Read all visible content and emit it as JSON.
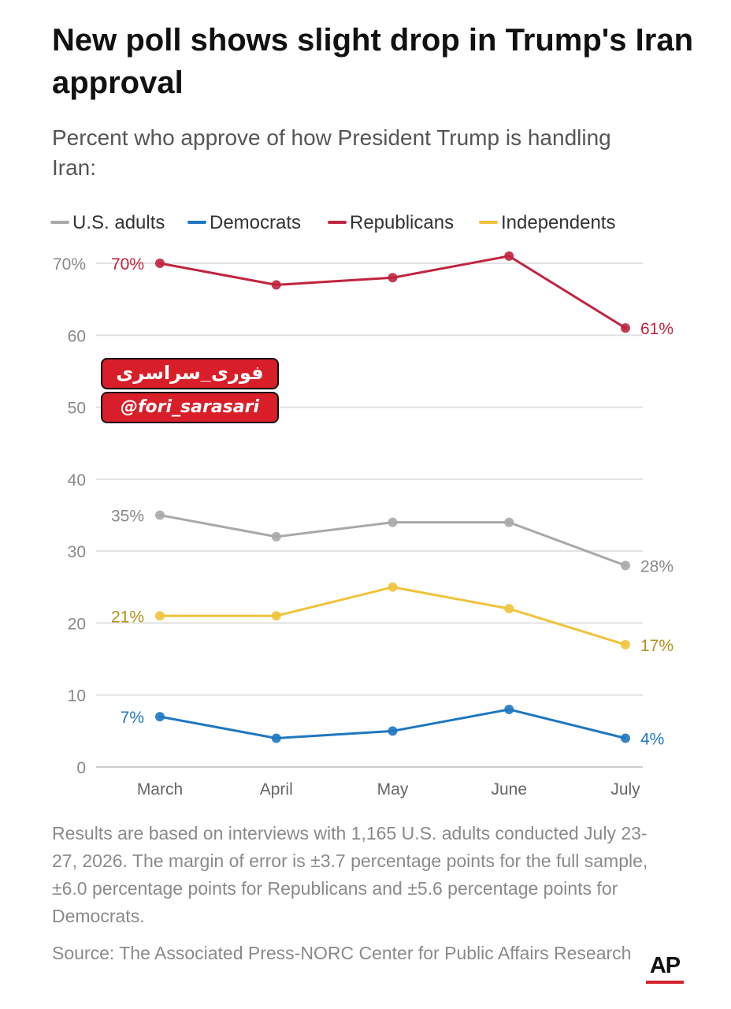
{
  "title": "New poll shows slight drop in Trump's Iran approval",
  "subtitle": "Percent who approve of how President Trump is handling Iran:",
  "watermark": {
    "line1": "فوری_سراسری",
    "line2": "@fori_sarasari"
  },
  "footnote": "Results are based on interviews with 1,165 U.S. adults conducted July 23-27, 2026. The margin of error is ±3.7 percentage points for the full sample, ±6.0 percentage points for Republicans and ±5.6 percentage points for Democrats.",
  "source": "Source: The Associated Press-NORC Center for Public Affairs Research",
  "logo": "AP",
  "chart_data": {
    "type": "line",
    "title": "New poll shows slight drop in Trump's Iran approval",
    "subtitle": "Percent who approve of how President Trump is handling Iran:",
    "x": [
      "March",
      "April",
      "May",
      "June",
      "July"
    ],
    "ylim": [
      0,
      70
    ],
    "yticks": [
      0,
      10,
      20,
      30,
      40,
      50,
      60,
      70
    ],
    "ytick_labels": [
      "0",
      "10",
      "20",
      "30",
      "40",
      "50",
      "60",
      "70%"
    ],
    "grid": true,
    "legend_position": "top",
    "series": [
      {
        "name": "U.S. adults",
        "color": "#a9a9a9",
        "label_color": "#8a8a8a",
        "values": [
          35,
          32,
          34,
          34,
          28
        ],
        "start_label": "35%",
        "end_label": "28%"
      },
      {
        "name": "Democrats",
        "color": "#1f77c0",
        "label_color": "#1f77c0",
        "values": [
          7,
          4,
          5,
          8,
          4
        ],
        "start_label": "7%",
        "end_label": "4%"
      },
      {
        "name": "Republicans",
        "color": "#c0243f",
        "label_color": "#c0243f",
        "values": [
          70,
          67,
          68,
          71,
          61
        ],
        "start_label": "70%",
        "end_label": "61%"
      },
      {
        "name": "Independents",
        "color": "#f0c33c",
        "label_color": "#b0901f",
        "values": [
          21,
          21,
          25,
          22,
          17
        ],
        "start_label": "21%",
        "end_label": "17%"
      }
    ]
  }
}
